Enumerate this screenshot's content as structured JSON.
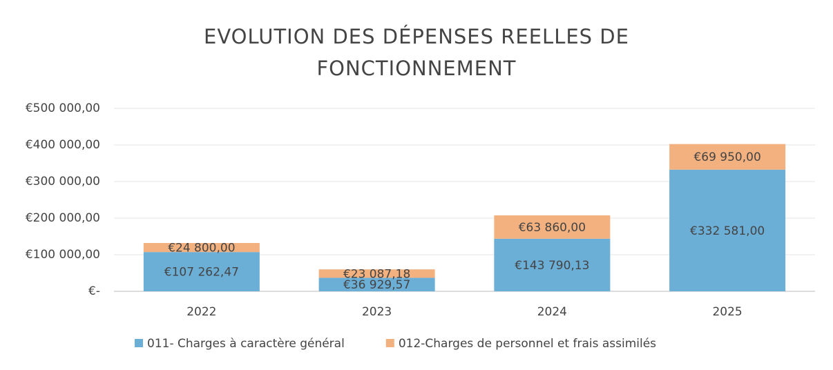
{
  "chart_data": {
    "type": "stacked_bar",
    "title": "EVOLUTION DES DÉPENSES REELLES DE FONCTIONNEMENT",
    "categories": [
      "2022",
      "2023",
      "2024",
      "2025"
    ],
    "series": [
      {
        "name": "011- Charges à caractère général",
        "color": "#6baed6",
        "values": [
          107262.47,
          36929.57,
          143790.13,
          332581.0
        ],
        "value_labels": [
          "€107 262,47",
          "€36 929,57",
          "€143 790,13",
          "€332 581,00"
        ]
      },
      {
        "name": "012-Charges de personnel et frais assimilés",
        "color": "#f2b17f",
        "values": [
          24800.0,
          23087.18,
          63860.0,
          69950.0
        ],
        "value_labels": [
          "€24 800,00",
          "€23 087,18",
          "€63 860,00",
          "€69 950,00"
        ]
      }
    ],
    "ylim": [
      0,
      500000
    ],
    "yticks": [
      {
        "value": 0,
        "label": "€-"
      },
      {
        "value": 100000,
        "label": "€100 000,00"
      },
      {
        "value": 200000,
        "label": "€200 000,00"
      },
      {
        "value": 300000,
        "label": "€300 000,00"
      },
      {
        "value": 400000,
        "label": "€400 000,00"
      },
      {
        "value": 500000,
        "label": "€500 000,00"
      }
    ],
    "grid": true,
    "legend": "bottom"
  }
}
